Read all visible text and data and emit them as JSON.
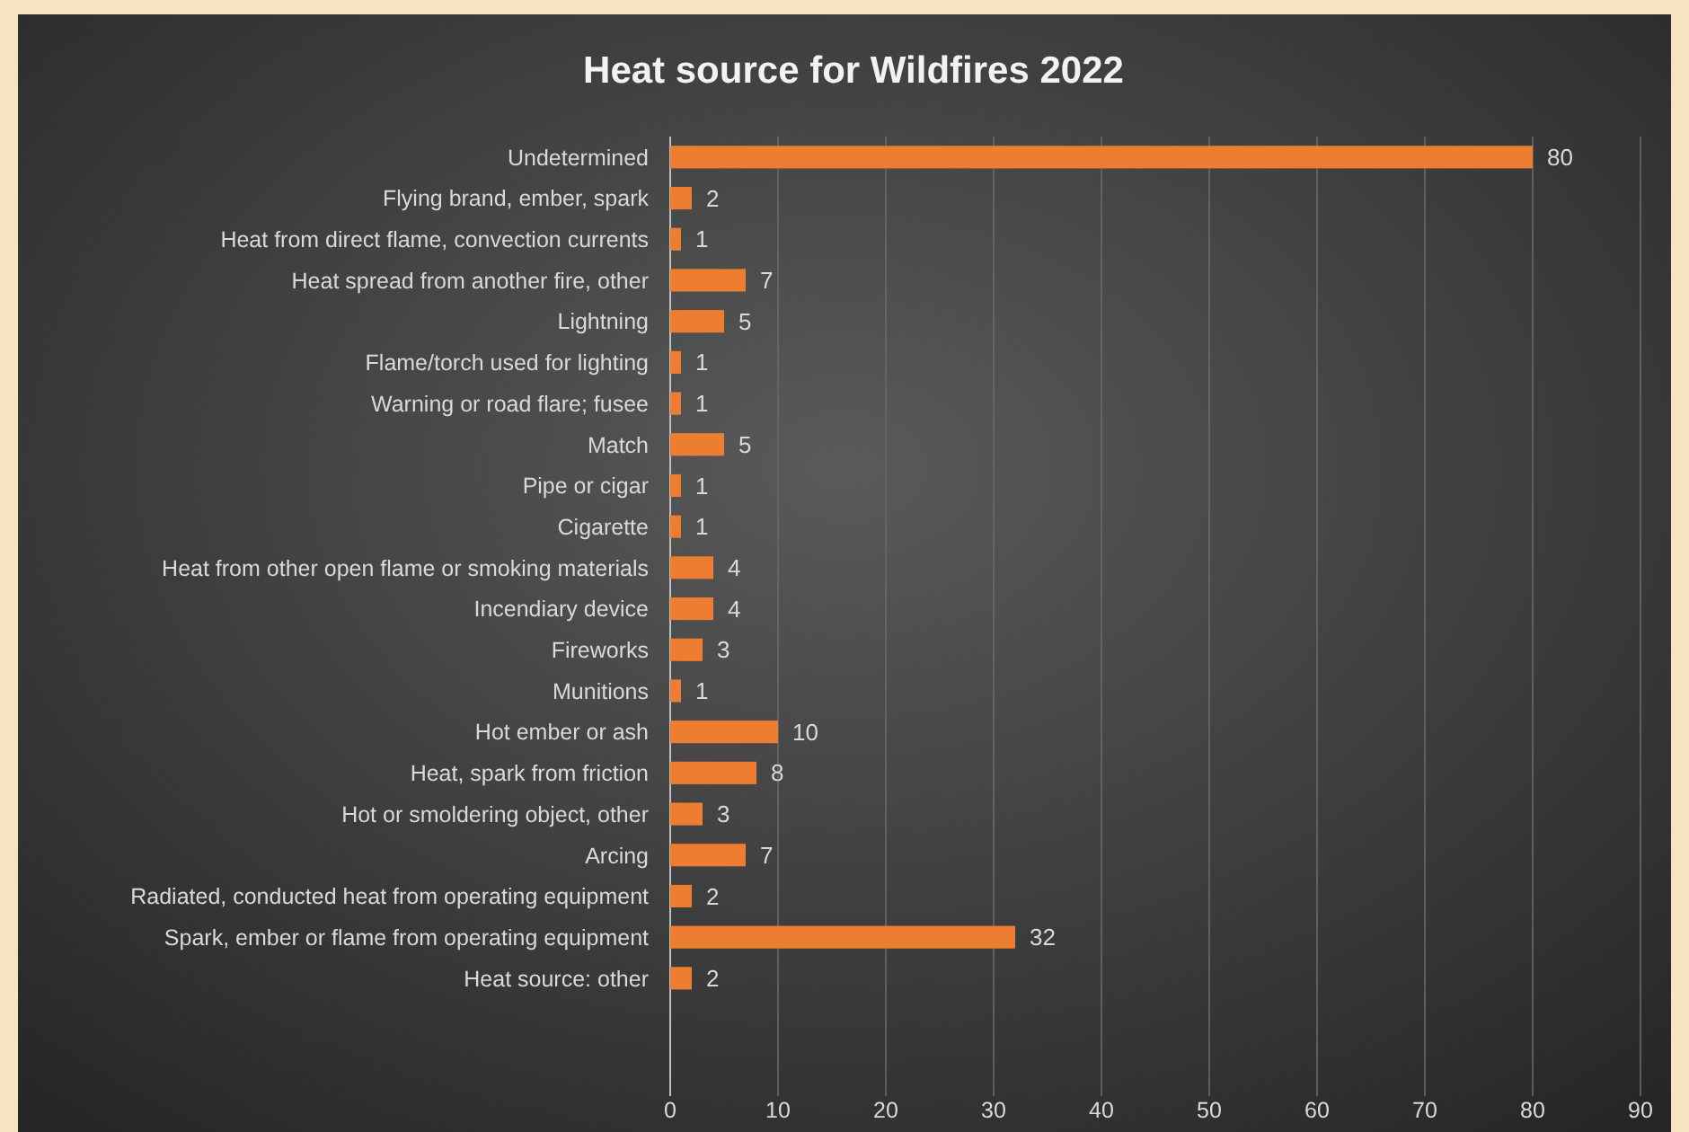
{
  "chart_data": {
    "type": "bar",
    "orientation": "horizontal",
    "title": "Heat source for Wildfires 2022",
    "categories": [
      "Undetermined",
      "Flying brand, ember, spark",
      "Heat from direct flame, convection currents",
      "Heat spread from another fire, other",
      "Lightning",
      "Flame/torch used for lighting",
      "Warning or road flare; fusee",
      "Match",
      "Pipe or cigar",
      "Cigarette",
      "Heat from other open flame or smoking materials",
      "Incendiary device",
      "Fireworks",
      "Munitions",
      "Hot ember or ash",
      "Heat, spark from friction",
      "Hot or smoldering object, other",
      "Arcing",
      "Radiated, conducted heat from operating equipment",
      "Spark, ember or flame from operating equipment",
      "Heat source: other"
    ],
    "values": [
      80,
      2,
      1,
      7,
      5,
      1,
      1,
      5,
      1,
      1,
      4,
      4,
      3,
      1,
      10,
      8,
      3,
      7,
      2,
      32,
      2
    ],
    "color": "#ed7d31",
    "data_labels": true,
    "xlim": [
      0,
      90
    ],
    "xticks": [
      0,
      10,
      20,
      30,
      40,
      50,
      60,
      70,
      80,
      90
    ],
    "grid": "x"
  }
}
